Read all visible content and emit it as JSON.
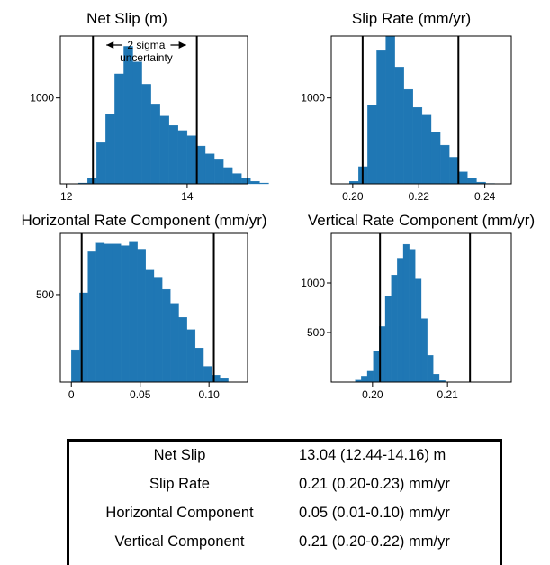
{
  "colors": {
    "bar": "#1f77b4",
    "line": "#000000",
    "axis": "#000000"
  },
  "chart_data": [
    {
      "type": "histogram",
      "title": "Net Slip (m)",
      "xlim": [
        11.9,
        15.0
      ],
      "ylim": [
        0,
        1720
      ],
      "xticks": [
        12,
        14
      ],
      "xtick_labels": [
        "12",
        "14"
      ],
      "yticks": [
        1000
      ],
      "ytick_labels": [
        "1000"
      ],
      "bin_width": 0.15,
      "bin_start": 11.9,
      "values": [
        0,
        0,
        10,
        70,
        480,
        810,
        1280,
        1600,
        1420,
        1160,
        930,
        790,
        680,
        620,
        560,
        440,
        350,
        280,
        190,
        120,
        70,
        30,
        10
      ],
      "vlines": [
        12.44,
        14.16
      ],
      "annotation": [
        "2 sigma",
        "uncertainty"
      ]
    },
    {
      "type": "histogram",
      "title": "Slip Rate (mm/yr)",
      "xlim": [
        0.1935,
        0.248
      ],
      "ylim": [
        0,
        1720
      ],
      "xticks": [
        0.2,
        0.22,
        0.24
      ],
      "xtick_labels": [
        "0.20",
        "0.22",
        "0.24"
      ],
      "yticks": [
        1000
      ],
      "ytick_labels": [
        "1000"
      ],
      "bin_width": 0.00275,
      "bin_start": 0.1935,
      "values": [
        0,
        0,
        30,
        200,
        920,
        1550,
        1720,
        1360,
        1100,
        890,
        800,
        600,
        450,
        310,
        140,
        70,
        20,
        5
      ],
      "vlines": [
        0.203,
        0.232
      ],
      "annotation": []
    },
    {
      "type": "histogram",
      "title": "Horizontal Rate Component (mm/yr)",
      "xlim": [
        -0.008,
        0.128
      ],
      "ylim": [
        0,
        850
      ],
      "xticks": [
        0,
        0.05,
        0.1
      ],
      "xtick_labels": [
        "0",
        "0.05",
        "0.10"
      ],
      "yticks": [
        500
      ],
      "ytick_labels": [
        "500"
      ],
      "bin_width": 0.006,
      "bin_start": 0,
      "values": [
        185,
        510,
        745,
        795,
        790,
        790,
        780,
        800,
        760,
        640,
        600,
        530,
        450,
        370,
        300,
        195,
        90,
        40,
        20
      ],
      "vlines": [
        0.0075,
        0.1035
      ],
      "annotation": []
    },
    {
      "type": "histogram",
      "title": "Vertical Rate Component (mm/yr)",
      "xlim": [
        0.1945,
        0.2185
      ],
      "ylim": [
        0,
        1500
      ],
      "xticks": [
        0.2,
        0.21
      ],
      "xtick_labels": [
        "0.20",
        "0.21"
      ],
      "yticks": [
        500,
        1000
      ],
      "ytick_labels": [
        "500",
        "1000"
      ],
      "bin_width": 0.0008,
      "bin_start": 0.1945,
      "values": [
        0,
        0,
        0,
        0,
        20,
        60,
        110,
        310,
        560,
        870,
        1080,
        1250,
        1390,
        1340,
        1040,
        640,
        270,
        80,
        15,
        0
      ],
      "vlines": [
        0.201,
        0.213
      ],
      "annotation": []
    }
  ],
  "summary": {
    "rows": [
      {
        "label": "Net Slip",
        "value": "13.04 (12.44-14.16) m"
      },
      {
        "label": "Slip Rate",
        "value": "0.21 (0.20-0.23) mm/yr"
      },
      {
        "label": "Horizontal Component",
        "value": "0.05 (0.01-0.10) mm/yr"
      },
      {
        "label": "Vertical Component",
        "value": "0.21 (0.20-0.22) mm/yr"
      }
    ]
  }
}
